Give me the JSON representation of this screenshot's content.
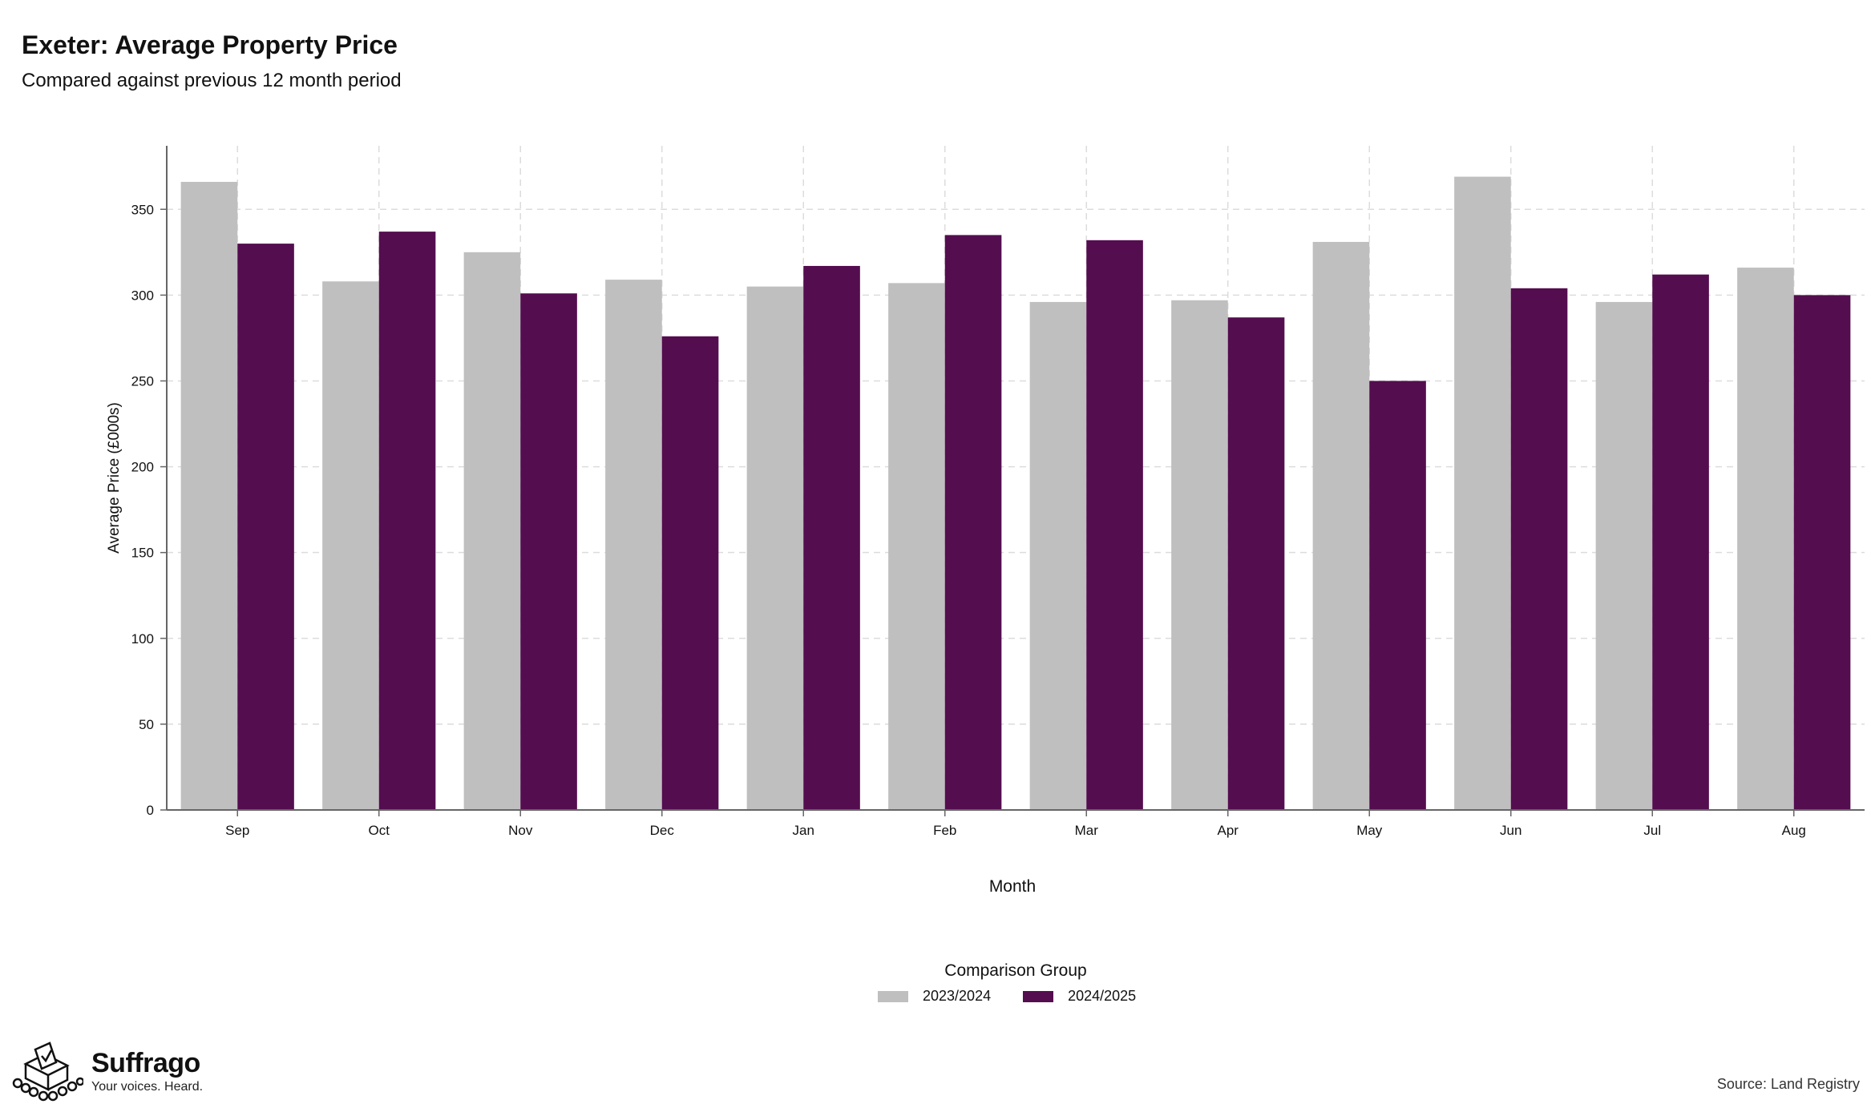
{
  "title": "Exeter: Average Property Price",
  "subtitle": "Compared against previous 12 month period",
  "colors": {
    "series_2023": "#bfbfbf",
    "series_2024": "#540d4f",
    "grid": "#dcdcdc",
    "axis": "#666666"
  },
  "legend": {
    "title": "Comparison Group",
    "items": [
      "2023/2024",
      "2024/2025"
    ]
  },
  "brand": {
    "name": "Suffrago",
    "tagline": "Your voices. Heard.",
    "logo_icon": "ballot-box-icon"
  },
  "source": "Source: Land Registry",
  "chart_data": {
    "type": "bar",
    "xlabel": "Month",
    "ylabel": "Average Price (£000s)",
    "categories": [
      "Sep",
      "Oct",
      "Nov",
      "Dec",
      "Jan",
      "Feb",
      "Mar",
      "Apr",
      "May",
      "Jun",
      "Jul",
      "Aug"
    ],
    "series": [
      {
        "name": "2023/2024",
        "values": [
          366,
          308,
          325,
          309,
          305,
          307,
          296,
          297,
          331,
          369,
          296,
          316
        ]
      },
      {
        "name": "2024/2025",
        "values": [
          330,
          337,
          301,
          276,
          317,
          335,
          332,
          287,
          250,
          304,
          312,
          300
        ]
      }
    ],
    "ylim": [
      0,
      387
    ],
    "yticks": [
      0,
      50,
      100,
      150,
      200,
      250,
      300,
      350
    ],
    "grid": true,
    "legend_position": "bottom"
  }
}
